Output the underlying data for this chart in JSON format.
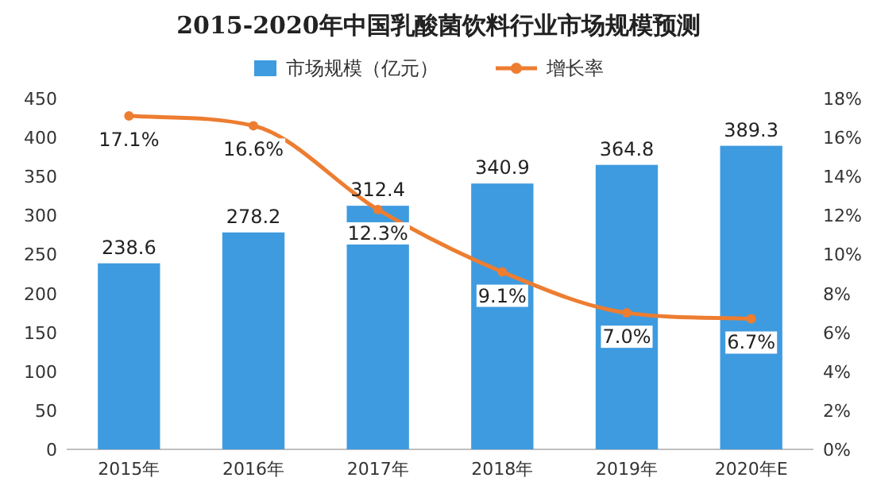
{
  "chart_data": {
    "type": "bar",
    "title": "2015-2020年中国乳酸菌饮料行业市场规模预测",
    "categories": [
      "2015年",
      "2016年",
      "2017年",
      "2018年",
      "2019年",
      "2020年E"
    ],
    "series": [
      {
        "name": "市场规模（亿元）",
        "color": "#3e9be0",
        "values": [
          238.6,
          278.2,
          312.4,
          340.9,
          364.8,
          389.3
        ],
        "value_labels": [
          "238.6",
          "278.2",
          "312.4",
          "340.9",
          "364.8",
          "389.3"
        ]
      },
      {
        "name": "增长率",
        "type": "line",
        "axis": "y2",
        "color": "#ed7d31",
        "values": [
          17.1,
          16.6,
          12.3,
          9.1,
          7.0,
          6.7
        ],
        "value_labels": [
          "17.1%",
          "16.6%",
          "12.3%",
          "9.1%",
          "7.0%",
          "6.7%"
        ]
      }
    ],
    "ylim": [
      0,
      450
    ],
    "yticks": [
      0,
      50,
      100,
      150,
      200,
      250,
      300,
      350,
      400,
      450
    ],
    "y2lim": [
      0,
      18
    ],
    "y2ticks": [
      {
        "value": 0,
        "label": "0%"
      },
      {
        "value": 2,
        "label": "2%"
      },
      {
        "value": 4,
        "label": "4%"
      },
      {
        "value": 6,
        "label": "6%"
      },
      {
        "value": 8,
        "label": "8%"
      },
      {
        "value": 10,
        "label": "10%"
      },
      {
        "value": 12,
        "label": "12%"
      },
      {
        "value": 14,
        "label": "14%"
      },
      {
        "value": 16,
        "label": "16%"
      },
      {
        "value": 18,
        "label": "18%"
      }
    ],
    "legend": "top",
    "marker": "circle",
    "grid": false
  }
}
